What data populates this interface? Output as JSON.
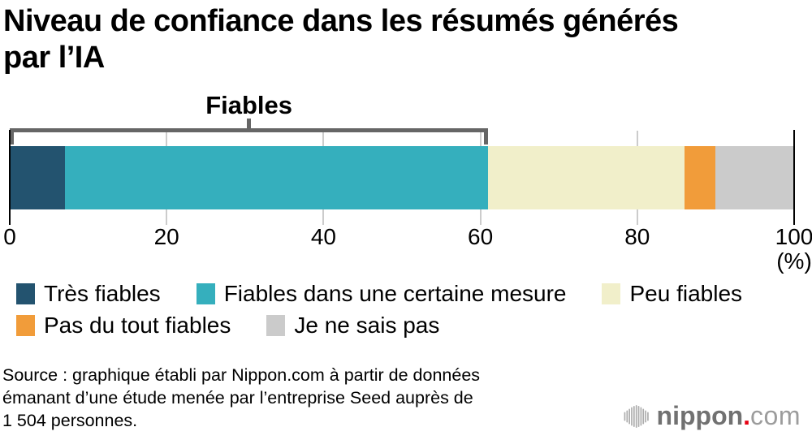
{
  "title": "Niveau de confiance dans les résumés générés par l’IA",
  "chart_data": {
    "type": "bar",
    "stacked": true,
    "orientation": "horizontal",
    "title": "Niveau de confiance dans les résumés générés par l’IA",
    "unit_label": "(%)",
    "xlim": [
      0,
      100
    ],
    "ticks": [
      0,
      20,
      40,
      60,
      80,
      100
    ],
    "grid": "vertical ticks at 20/40/60/80, black edge lines at 0 and 100",
    "bracket": {
      "label": "Fiables",
      "from": 0,
      "to": 61
    },
    "segments": [
      {
        "label": "Très fiables",
        "value": 7,
        "color": "#23536f"
      },
      {
        "label": "Fiables dans une certaine mesure",
        "value": 54,
        "color": "#35afbd"
      },
      {
        "label": "Peu fiables",
        "value": 25,
        "color": "#f1efca"
      },
      {
        "label": "Pas du tout fiables",
        "value": 4,
        "color": "#f19c3a"
      },
      {
        "label": "Je ne sais pas",
        "value": 10,
        "color": "#cbcbcb"
      }
    ],
    "legend_position": "below"
  },
  "legend": {
    "rows": [
      [
        0,
        1,
        2
      ],
      [
        3,
        4
      ]
    ]
  },
  "source": {
    "text": "Source : graphique établi par Nippon.com à partir de données\német;anant d’une étude menée par l’entreprise Seed auprès de\n1 504 personnes."
  },
  "logo": {
    "name_bold": "nippon",
    "dot": ".",
    "name_light": "com",
    "dot_color": "#e60012",
    "icon": "vertical-bars-soundwave-icon"
  }
}
